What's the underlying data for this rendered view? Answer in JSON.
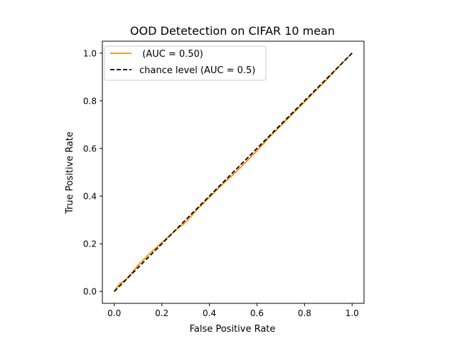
{
  "chart_data": {
    "type": "line",
    "title": "OOD Detetection on CIFAR 10 mean",
    "xlabel": "False Positive Rate",
    "ylabel": "True Positive Rate",
    "xlim": [
      -0.05,
      1.05
    ],
    "ylim": [
      -0.05,
      1.05
    ],
    "xticks": [
      0.0,
      0.2,
      0.4,
      0.6,
      0.8,
      1.0
    ],
    "yticks": [
      0.0,
      0.2,
      0.4,
      0.6,
      0.8,
      1.0
    ],
    "xtick_labels": [
      "0.0",
      "0.2",
      "0.4",
      "0.6",
      "0.8",
      "1.0"
    ],
    "ytick_labels": [
      "0.0",
      "0.2",
      "0.4",
      "0.6",
      "0.8",
      "1.0"
    ],
    "grid": false,
    "legend_position": "top-left",
    "series": [
      {
        "name": " (AUC = 0.50)",
        "color": "#ff8c00",
        "style": "solid",
        "x": [
          0.0,
          0.02,
          0.05,
          0.1,
          0.15,
          0.2,
          0.25,
          0.3,
          0.35,
          0.4,
          0.45,
          0.5,
          0.55,
          0.6,
          0.65,
          0.7,
          0.75,
          0.8,
          0.85,
          0.9,
          0.95,
          1.0
        ],
        "y": [
          0.0,
          0.03,
          0.05,
          0.11,
          0.16,
          0.205,
          0.25,
          0.29,
          0.345,
          0.395,
          0.445,
          0.49,
          0.54,
          0.59,
          0.645,
          0.695,
          0.745,
          0.795,
          0.845,
          0.895,
          0.95,
          1.0
        ]
      },
      {
        "name": "chance level (AUC = 0.5)",
        "color": "#000000",
        "style": "dashed",
        "x": [
          0.0,
          1.0
        ],
        "y": [
          0.0,
          1.0
        ]
      }
    ]
  }
}
